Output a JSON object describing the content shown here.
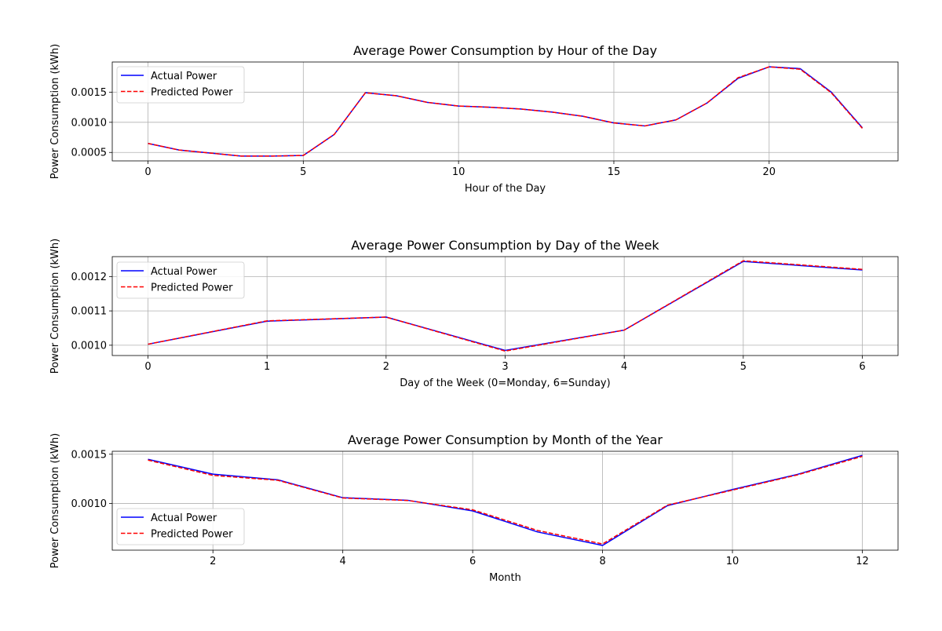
{
  "chart_data": [
    {
      "type": "line",
      "title": "Average Power Consumption by Hour of the Day",
      "xlabel": "Hour of the Day",
      "ylabel": "Power Consumption (kWh)",
      "xlim": [
        -1.15,
        24.15
      ],
      "ylim": [
        0.00036,
        0.002
      ],
      "xticks": [
        0,
        5,
        10,
        15,
        20
      ],
      "xtick_labels": [
        "0",
        "5",
        "10",
        "15",
        "20"
      ],
      "yticks": [
        0.0005,
        0.001,
        0.0015
      ],
      "ytick_labels": [
        "0.0005",
        "0.0010",
        "0.0015"
      ],
      "grid": true,
      "legend_position": "upper-left",
      "x": [
        0,
        1,
        2,
        3,
        4,
        5,
        6,
        7,
        8,
        9,
        10,
        11,
        12,
        13,
        14,
        15,
        16,
        17,
        18,
        19,
        20,
        21,
        22,
        23
      ],
      "series": [
        {
          "name": "Actual Power",
          "style": "solid",
          "color": "#0000ff",
          "values": [
            0.00065,
            0.00054,
            0.00049,
            0.00044,
            0.00044,
            0.00045,
            0.0008,
            0.00149,
            0.00144,
            0.00133,
            0.00127,
            0.00125,
            0.00122,
            0.00117,
            0.0011,
            0.00099,
            0.00094,
            0.00104,
            0.00132,
            0.00173,
            0.00192,
            0.00189,
            0.0015,
            0.00091
          ]
        },
        {
          "name": "Predicted Power",
          "style": "dashed",
          "color": "#ff0000",
          "values": [
            0.00065,
            0.00054,
            0.00049,
            0.00044,
            0.00044,
            0.00045,
            0.0008,
            0.00149,
            0.00144,
            0.00133,
            0.00127,
            0.00125,
            0.00122,
            0.00117,
            0.0011,
            0.00099,
            0.00094,
            0.00104,
            0.00132,
            0.00174,
            0.00192,
            0.00188,
            0.00149,
            0.0009
          ]
        }
      ]
    },
    {
      "type": "line",
      "title": "Average Power Consumption by Day of the Week",
      "xlabel": "Day of the Week (0=Monday, 6=Sunday)",
      "ylabel": "Power Consumption (kWh)",
      "xlim": [
        -0.3,
        6.3
      ],
      "ylim": [
        0.00097,
        0.001258
      ],
      "xticks": [
        0,
        1,
        2,
        3,
        4,
        5,
        6
      ],
      "xtick_labels": [
        "0",
        "1",
        "2",
        "3",
        "4",
        "5",
        "6"
      ],
      "yticks": [
        0.001,
        0.0011,
        0.0012
      ],
      "ytick_labels": [
        "0.0010",
        "0.0011",
        "0.0012"
      ],
      "grid": true,
      "legend_position": "upper-left",
      "x": [
        0,
        1,
        2,
        3,
        4,
        5,
        6
      ],
      "series": [
        {
          "name": "Actual Power",
          "style": "solid",
          "color": "#0000ff",
          "values": [
            0.001003,
            0.00107,
            0.001082,
            0.000985,
            0.001044,
            0.001244,
            0.001219
          ]
        },
        {
          "name": "Predicted Power",
          "style": "dashed",
          "color": "#ff0000",
          "values": [
            0.001003,
            0.001071,
            0.001082,
            0.000983,
            0.001044,
            0.001246,
            0.001221
          ]
        }
      ]
    },
    {
      "type": "line",
      "title": "Average Power Consumption by Month of the Year",
      "xlabel": "Month",
      "ylabel": "Power Consumption (kWh)",
      "xlim": [
        0.45,
        12.55
      ],
      "ylim": [
        0.000525,
        0.00153
      ],
      "xticks": [
        2,
        4,
        6,
        8,
        10,
        12
      ],
      "xtick_labels": [
        "2",
        "4",
        "6",
        "8",
        "10",
        "12"
      ],
      "yticks": [
        0.001,
        0.0015
      ],
      "ytick_labels": [
        "0.0010",
        "0.0015"
      ],
      "grid": true,
      "legend_position": "lower-left",
      "x": [
        1,
        2,
        3,
        4,
        5,
        6,
        7,
        8,
        9,
        10,
        11,
        12
      ],
      "series": [
        {
          "name": "Actual Power",
          "style": "solid",
          "color": "#0000ff",
          "values": [
            0.001448,
            0.001298,
            0.00124,
            0.001058,
            0.001032,
            0.000924,
            0.00071,
            0.000573,
            0.000978,
            0.001141,
            0.001295,
            0.001488
          ]
        },
        {
          "name": "Predicted Power",
          "style": "dashed",
          "color": "#ff0000",
          "values": [
            0.00144,
            0.001285,
            0.001235,
            0.001055,
            0.00103,
            0.000935,
            0.000725,
            0.000588,
            0.000983,
            0.001135,
            0.00129,
            0.001478
          ]
        }
      ]
    }
  ]
}
